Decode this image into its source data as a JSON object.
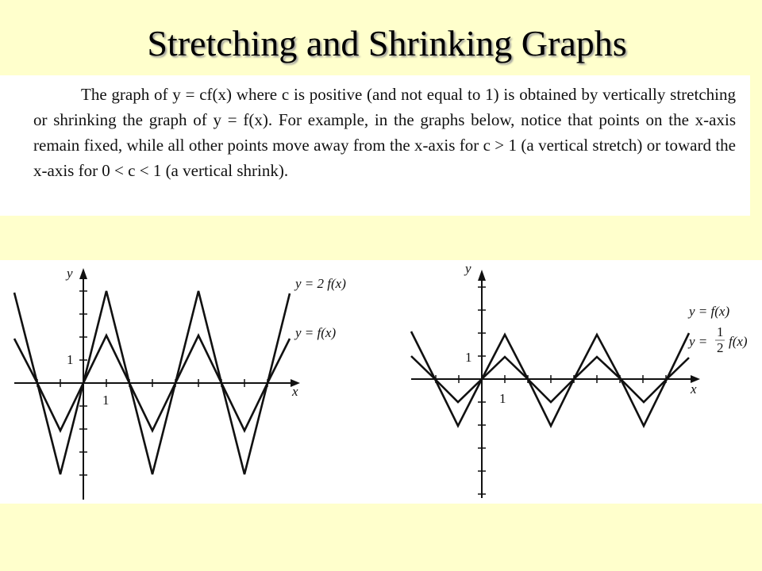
{
  "title": "Stretching and Shrinking Graphs",
  "paragraph": "The graph of y = cf(x) where c is positive (and not equal to 1) is obtained by vertically stretching or shrinking the graph of y = f(x). For example, in the graphs below, notice that points on the x-axis remain fixed, while all other points move away from the x-axis for c > 1 (a vertical stretch) or toward the x-axis for 0 < c < 1 (a vertical shrink).",
  "graphs": [
    {
      "y_axis": "y",
      "x_axis": "x",
      "x_unit": "1",
      "y_unit": "1",
      "labels": [
        "y = 2 f(x)",
        "y = f(x)"
      ]
    },
    {
      "y_axis": "y",
      "x_axis": "x",
      "x_unit": "1",
      "y_unit": "1",
      "labels": [
        "y = f(x)"
      ],
      "half_label": {
        "lead": "y =",
        "numerator": "1",
        "denominator": "2",
        "tail": "f(x)"
      }
    }
  ]
}
